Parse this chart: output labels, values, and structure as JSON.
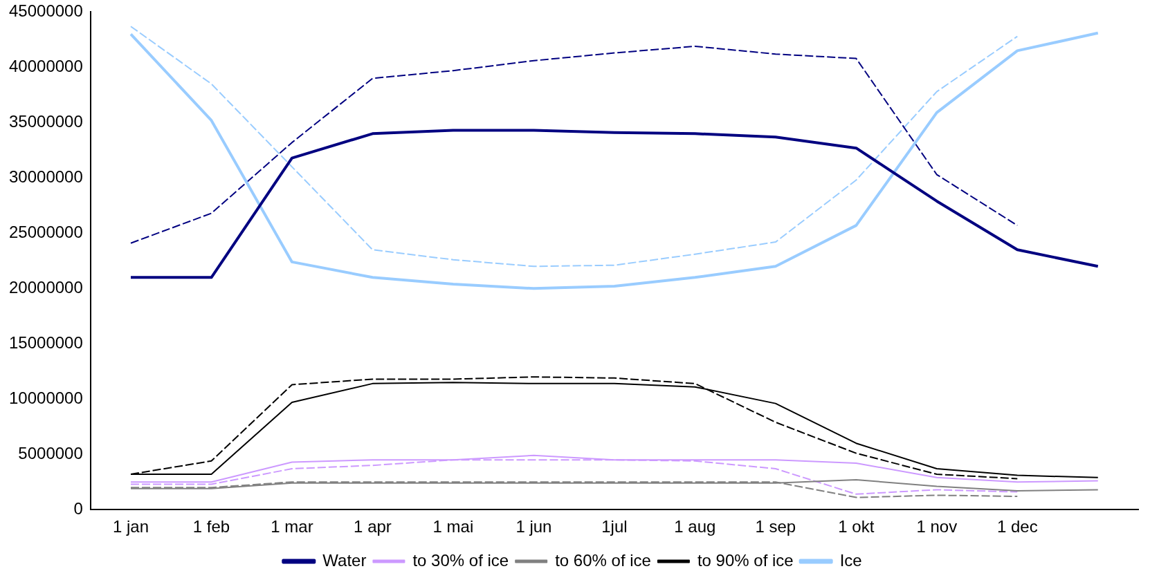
{
  "chart_data": {
    "type": "line",
    "categories": [
      "1 jan",
      "1 feb",
      "1 mar",
      "1 apr",
      "1 mai",
      "1 jun",
      "1jul",
      "1 aug",
      "1 sep",
      "1 okt",
      "1 nov",
      "1 dec",
      null
    ],
    "ylim": [
      0,
      45000000
    ],
    "yticks": [
      0,
      5000000,
      10000000,
      15000000,
      20000000,
      25000000,
      30000000,
      35000000,
      40000000,
      45000000
    ],
    "grid": false,
    "legend": "bottom",
    "marker": "none",
    "series": [
      {
        "name": "Water",
        "color": "#000080",
        "line_style": "solid",
        "values": [
          21000000,
          21000000,
          31800000,
          34000000,
          34300000,
          34300000,
          34100000,
          34000000,
          33700000,
          32700000,
          27900000,
          23500000,
          22000000
        ]
      },
      {
        "name": "to 30% of ice",
        "color": "#cc99ff",
        "line_style": "solid",
        "values": [
          2500000,
          2500000,
          4300000,
          4500000,
          4500000,
          4900000,
          4500000,
          4500000,
          4500000,
          4200000,
          2900000,
          2500000,
          2600000
        ]
      },
      {
        "name": "to 60% of ice",
        "color": "#808080",
        "line_style": "solid",
        "values": [
          1900000,
          1900000,
          2400000,
          2400000,
          2400000,
          2400000,
          2400000,
          2400000,
          2400000,
          2700000,
          2100000,
          1700000,
          1800000
        ]
      },
      {
        "name": "to 90% of ice",
        "color": "#000000",
        "line_style": "solid",
        "values": [
          3200000,
          3200000,
          9700000,
          11400000,
          11500000,
          11400000,
          11400000,
          11100000,
          9600000,
          6000000,
          3700000,
          3100000,
          2900000
        ]
      },
      {
        "name": "Ice",
        "color": "#99ccff",
        "line_style": "solid",
        "values": [
          43000000,
          35200000,
          22400000,
          21000000,
          20400000,
          20000000,
          20200000,
          21000000,
          22000000,
          25700000,
          35900000,
          41500000,
          43100000
        ]
      },
      {
        "color": "#000080",
        "line_style": "dashed",
        "values": [
          24100000,
          26800000,
          33200000,
          39000000,
          39700000,
          40600000,
          41300000,
          41900000,
          41200000,
          40800000,
          30300000,
          25700000,
          null
        ]
      },
      {
        "color": "#cc99ff",
        "line_style": "dashed",
        "values": [
          2300000,
          2300000,
          3700000,
          4000000,
          4500000,
          4500000,
          4500000,
          4400000,
          3700000,
          1400000,
          1800000,
          1600000,
          null
        ]
      },
      {
        "color": "#808080",
        "line_style": "dashed",
        "values": [
          2000000,
          2000000,
          2500000,
          2500000,
          2500000,
          2500000,
          2500000,
          2500000,
          2500000,
          1100000,
          1300000,
          1200000,
          null
        ]
      },
      {
        "color": "#000000",
        "line_style": "dashed",
        "values": [
          3200000,
          4400000,
          11300000,
          11800000,
          11800000,
          12000000,
          11900000,
          11400000,
          7900000,
          5100000,
          3200000,
          2800000,
          null
        ]
      },
      {
        "color": "#99ccff",
        "line_style": "dashed",
        "values": [
          43700000,
          38500000,
          31000000,
          23500000,
          22600000,
          22000000,
          22100000,
          23100000,
          24200000,
          29800000,
          37800000,
          42800000,
          null
        ]
      }
    ]
  }
}
